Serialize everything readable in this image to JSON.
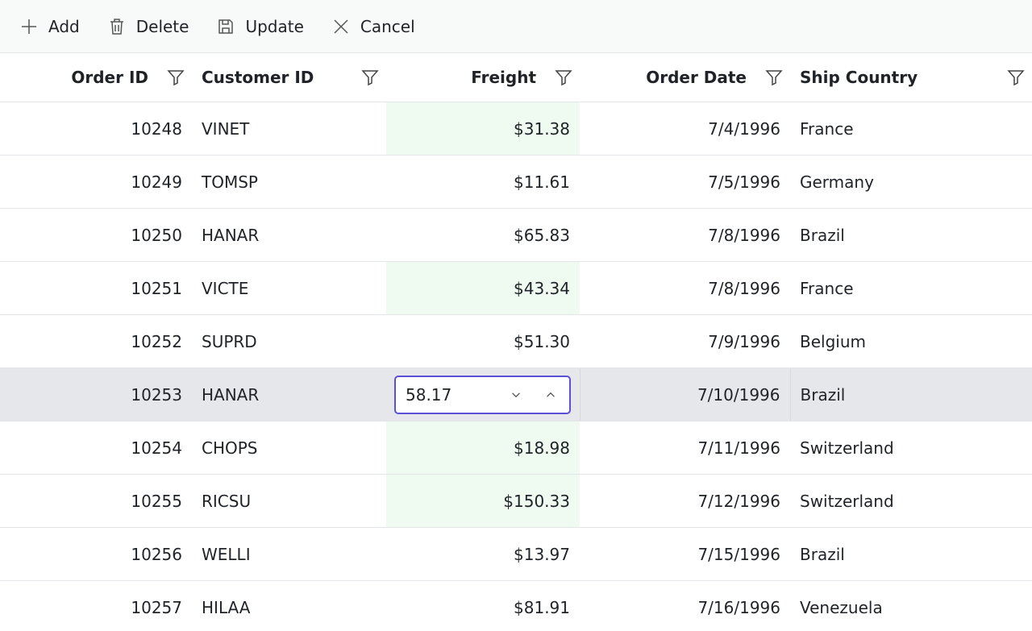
{
  "toolbar": {
    "items": [
      "Add",
      "Delete",
      "Update",
      "Cancel"
    ]
  },
  "table": {
    "columns": [
      "Order ID",
      "Customer ID",
      "Freight",
      "Order Date",
      "Ship Country"
    ],
    "rows": [
      [
        10248,
        "VINET",
        "$31.38",
        "7/4/1996",
        "France"
      ],
      [
        10249,
        "TOMSP",
        "$11.61",
        "7/5/1996",
        "Germany"
      ],
      [
        10250,
        "HANAR",
        "$65.83",
        "7/8/1996",
        "Brazil"
      ],
      [
        10251,
        "VICTE",
        "$43.34",
        "7/8/1996",
        "France"
      ],
      [
        10252,
        "SUPRD",
        "$51.30",
        "7/9/1996",
        "Belgium"
      ],
      [
        10253,
        "HANAR",
        "58.17",
        "7/10/1996",
        "Brazil"
      ],
      [
        10254,
        "CHOPS",
        "$18.98",
        "7/11/1996",
        "Switzerland"
      ],
      [
        10255,
        "RICSU",
        "$150.33",
        "7/12/1996",
        "Switzerland"
      ],
      [
        10256,
        "WELLI",
        "$13.97",
        "7/15/1996",
        "Brazil"
      ],
      [
        10257,
        "HILAA",
        "$81.91",
        "7/16/1996",
        "Venezuela"
      ]
    ]
  }
}
